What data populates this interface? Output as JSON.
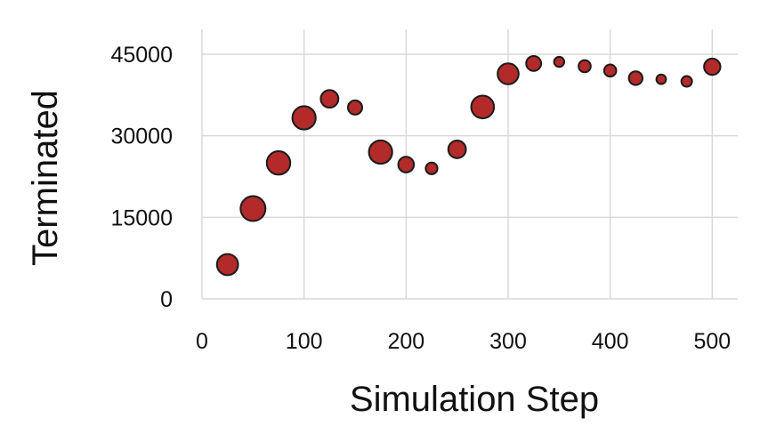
{
  "chart_data": {
    "type": "scatter",
    "xlabel": "Simulation Step",
    "ylabel": "Terminated",
    "xlim": [
      0,
      525
    ],
    "ylim": [
      0,
      45000
    ],
    "xticks": [
      "0",
      "100",
      "200",
      "300",
      "400",
      "500"
    ],
    "yticks": [
      "0",
      "15000",
      "30000",
      "45000"
    ],
    "grid": true,
    "marker_color": "#B22A2A",
    "points": [
      {
        "x": 25,
        "y": 6300
      },
      {
        "x": 50,
        "y": 16600
      },
      {
        "x": 75,
        "y": 25000
      },
      {
        "x": 100,
        "y": 33300
      },
      {
        "x": 125,
        "y": 36800
      },
      {
        "x": 150,
        "y": 35200
      },
      {
        "x": 175,
        "y": 27000
      },
      {
        "x": 200,
        "y": 24700
      },
      {
        "x": 225,
        "y": 24000
      },
      {
        "x": 250,
        "y": 27500
      },
      {
        "x": 275,
        "y": 35300
      },
      {
        "x": 300,
        "y": 41400
      },
      {
        "x": 325,
        "y": 43300
      },
      {
        "x": 350,
        "y": 43600
      },
      {
        "x": 375,
        "y": 42800
      },
      {
        "x": 400,
        "y": 42000
      },
      {
        "x": 425,
        "y": 40600
      },
      {
        "x": 450,
        "y": 40400
      },
      {
        "x": 475,
        "y": 40000
      },
      {
        "x": 500,
        "y": 42700
      }
    ]
  }
}
